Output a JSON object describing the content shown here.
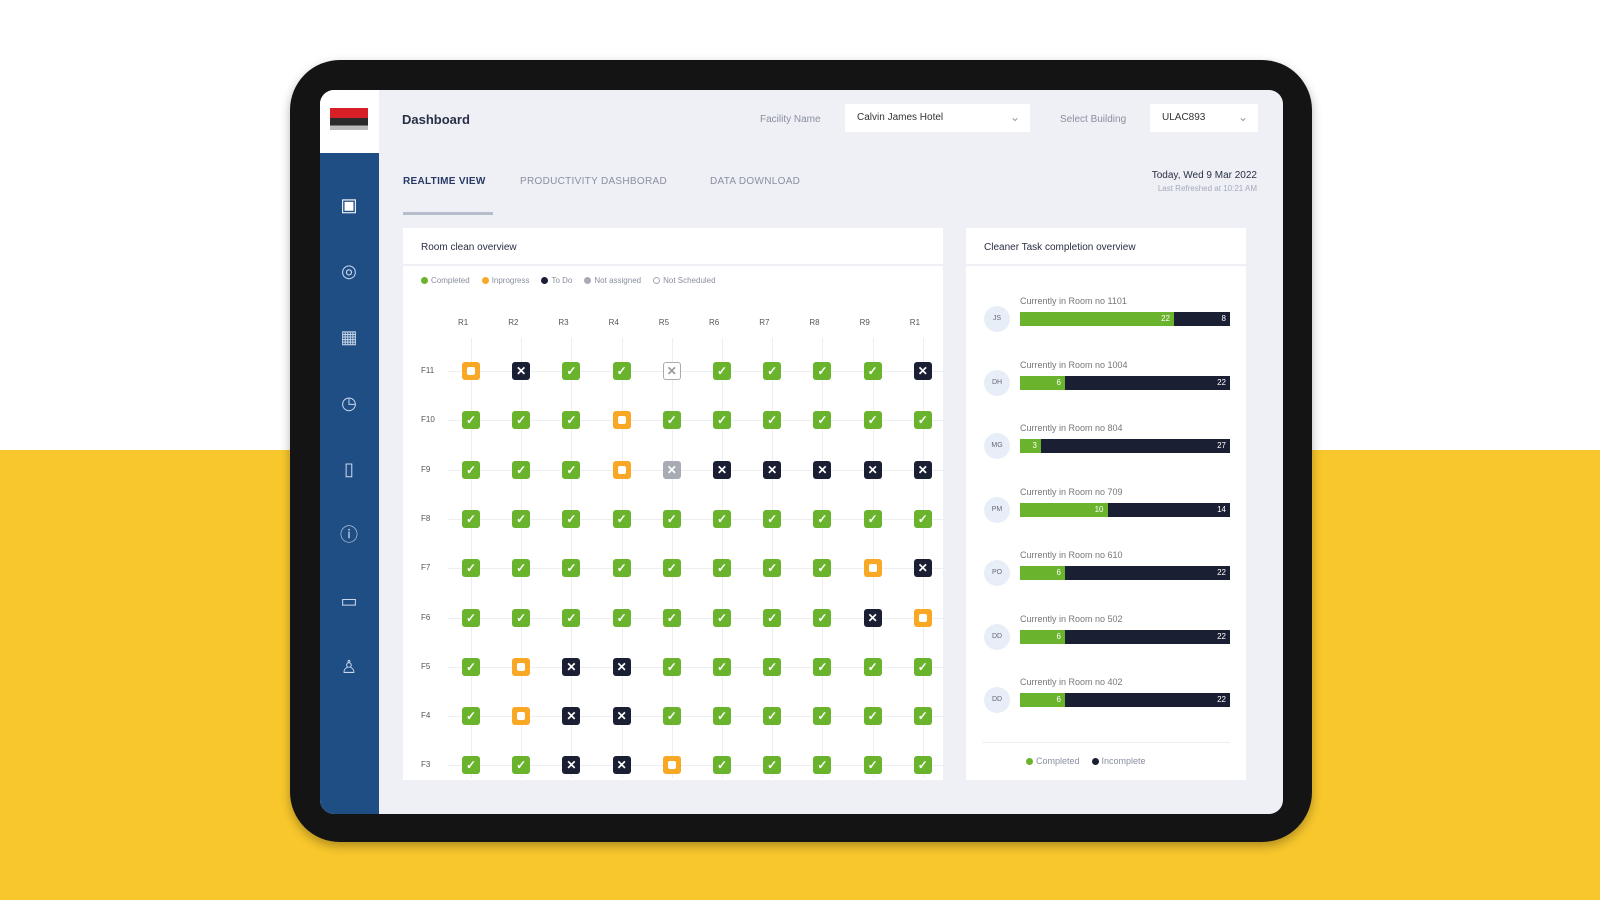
{
  "header": {
    "title": "Dashboard",
    "facility_label": "Facility Name",
    "facility_value": "Calvin James Hotel",
    "building_label": "Select Building",
    "building_value": "ULAC893"
  },
  "tabs": [
    {
      "label": "REALTIME VIEW"
    },
    {
      "label": "PRODUCTIVITY DASHBORAD"
    },
    {
      "label": "DATA DOWNLOAD"
    }
  ],
  "date": {
    "today": "Today, Wed 9 Mar 2022",
    "refreshed": "Last Refreshed at 10:21 AM"
  },
  "sidebar": {
    "icons": [
      "monitor-icon",
      "location-icon",
      "calendar-icon",
      "clock-icon",
      "book-icon",
      "info-icon",
      "chat-icon",
      "user-icon"
    ]
  },
  "room_overview": {
    "title": "Room clean overview",
    "legend": [
      {
        "label": "Completed",
        "color": "#6ab42d"
      },
      {
        "label": "Inprogress",
        "color": "#f9a825"
      },
      {
        "label": "To Do",
        "color": "#1a1f33"
      },
      {
        "label": "Not assigned",
        "color": "#a8abb3"
      },
      {
        "label": "Not Scheduled",
        "color": "#ffffff"
      }
    ],
    "columns": [
      "R1",
      "R2",
      "R3",
      "R4",
      "R5",
      "R6",
      "R7",
      "R8",
      "R9",
      "R1"
    ],
    "rows": [
      {
        "floor": "F11",
        "status": [
          "p",
          "t",
          "c",
          "c",
          "s",
          "c",
          "c",
          "c",
          "c",
          "t"
        ]
      },
      {
        "floor": "F10",
        "status": [
          "c",
          "c",
          "c",
          "p",
          "c",
          "c",
          "c",
          "c",
          "c",
          "c"
        ]
      },
      {
        "floor": "F9",
        "status": [
          "c",
          "c",
          "c",
          "p",
          "n",
          "t",
          "t",
          "t",
          "t",
          "t"
        ]
      },
      {
        "floor": "F8",
        "status": [
          "c",
          "c",
          "c",
          "c",
          "c",
          "c",
          "c",
          "c",
          "c",
          "c"
        ]
      },
      {
        "floor": "F7",
        "status": [
          "c",
          "c",
          "c",
          "c",
          "c",
          "c",
          "c",
          "c",
          "p",
          "t"
        ]
      },
      {
        "floor": "F6",
        "status": [
          "c",
          "c",
          "c",
          "c",
          "c",
          "c",
          "c",
          "c",
          "t",
          "p"
        ]
      },
      {
        "floor": "F5",
        "status": [
          "c",
          "p",
          "t",
          "t",
          "c",
          "c",
          "c",
          "c",
          "c",
          "c"
        ]
      },
      {
        "floor": "F4",
        "status": [
          "c",
          "p",
          "t",
          "t",
          "c",
          "c",
          "c",
          "c",
          "c",
          "c"
        ]
      },
      {
        "floor": "F3",
        "status": [
          "c",
          "c",
          "t",
          "t",
          "p",
          "c",
          "c",
          "c",
          "c",
          "c"
        ]
      }
    ]
  },
  "cleaner_overview": {
    "title": "Cleaner Task completion overview",
    "cleaners": [
      {
        "initials": "JS",
        "text": "Currently in Room no 1101",
        "completed": 22,
        "incomplete": 8
      },
      {
        "initials": "DH",
        "text": "Currently in Room no 1004",
        "completed": 6,
        "incomplete": 22
      },
      {
        "initials": "MG",
        "text": "Currently in Room no 804",
        "completed": 3,
        "incomplete": 27
      },
      {
        "initials": "PM",
        "text": "Currently in Room no 709",
        "completed": 10,
        "incomplete": 14
      },
      {
        "initials": "PO",
        "text": "Currently in Room no 610",
        "completed": 6,
        "incomplete": 22
      },
      {
        "initials": "DD",
        "text": "Currently in Room no 502",
        "completed": 6,
        "incomplete": 22
      },
      {
        "initials": "DD",
        "text": "Currently in Room no 402",
        "completed": 6,
        "incomplete": 22
      }
    ],
    "legend": [
      {
        "label": "Completed",
        "color": "#6ab42d"
      },
      {
        "label": "Incomplete",
        "color": "#1a1f33"
      }
    ]
  }
}
